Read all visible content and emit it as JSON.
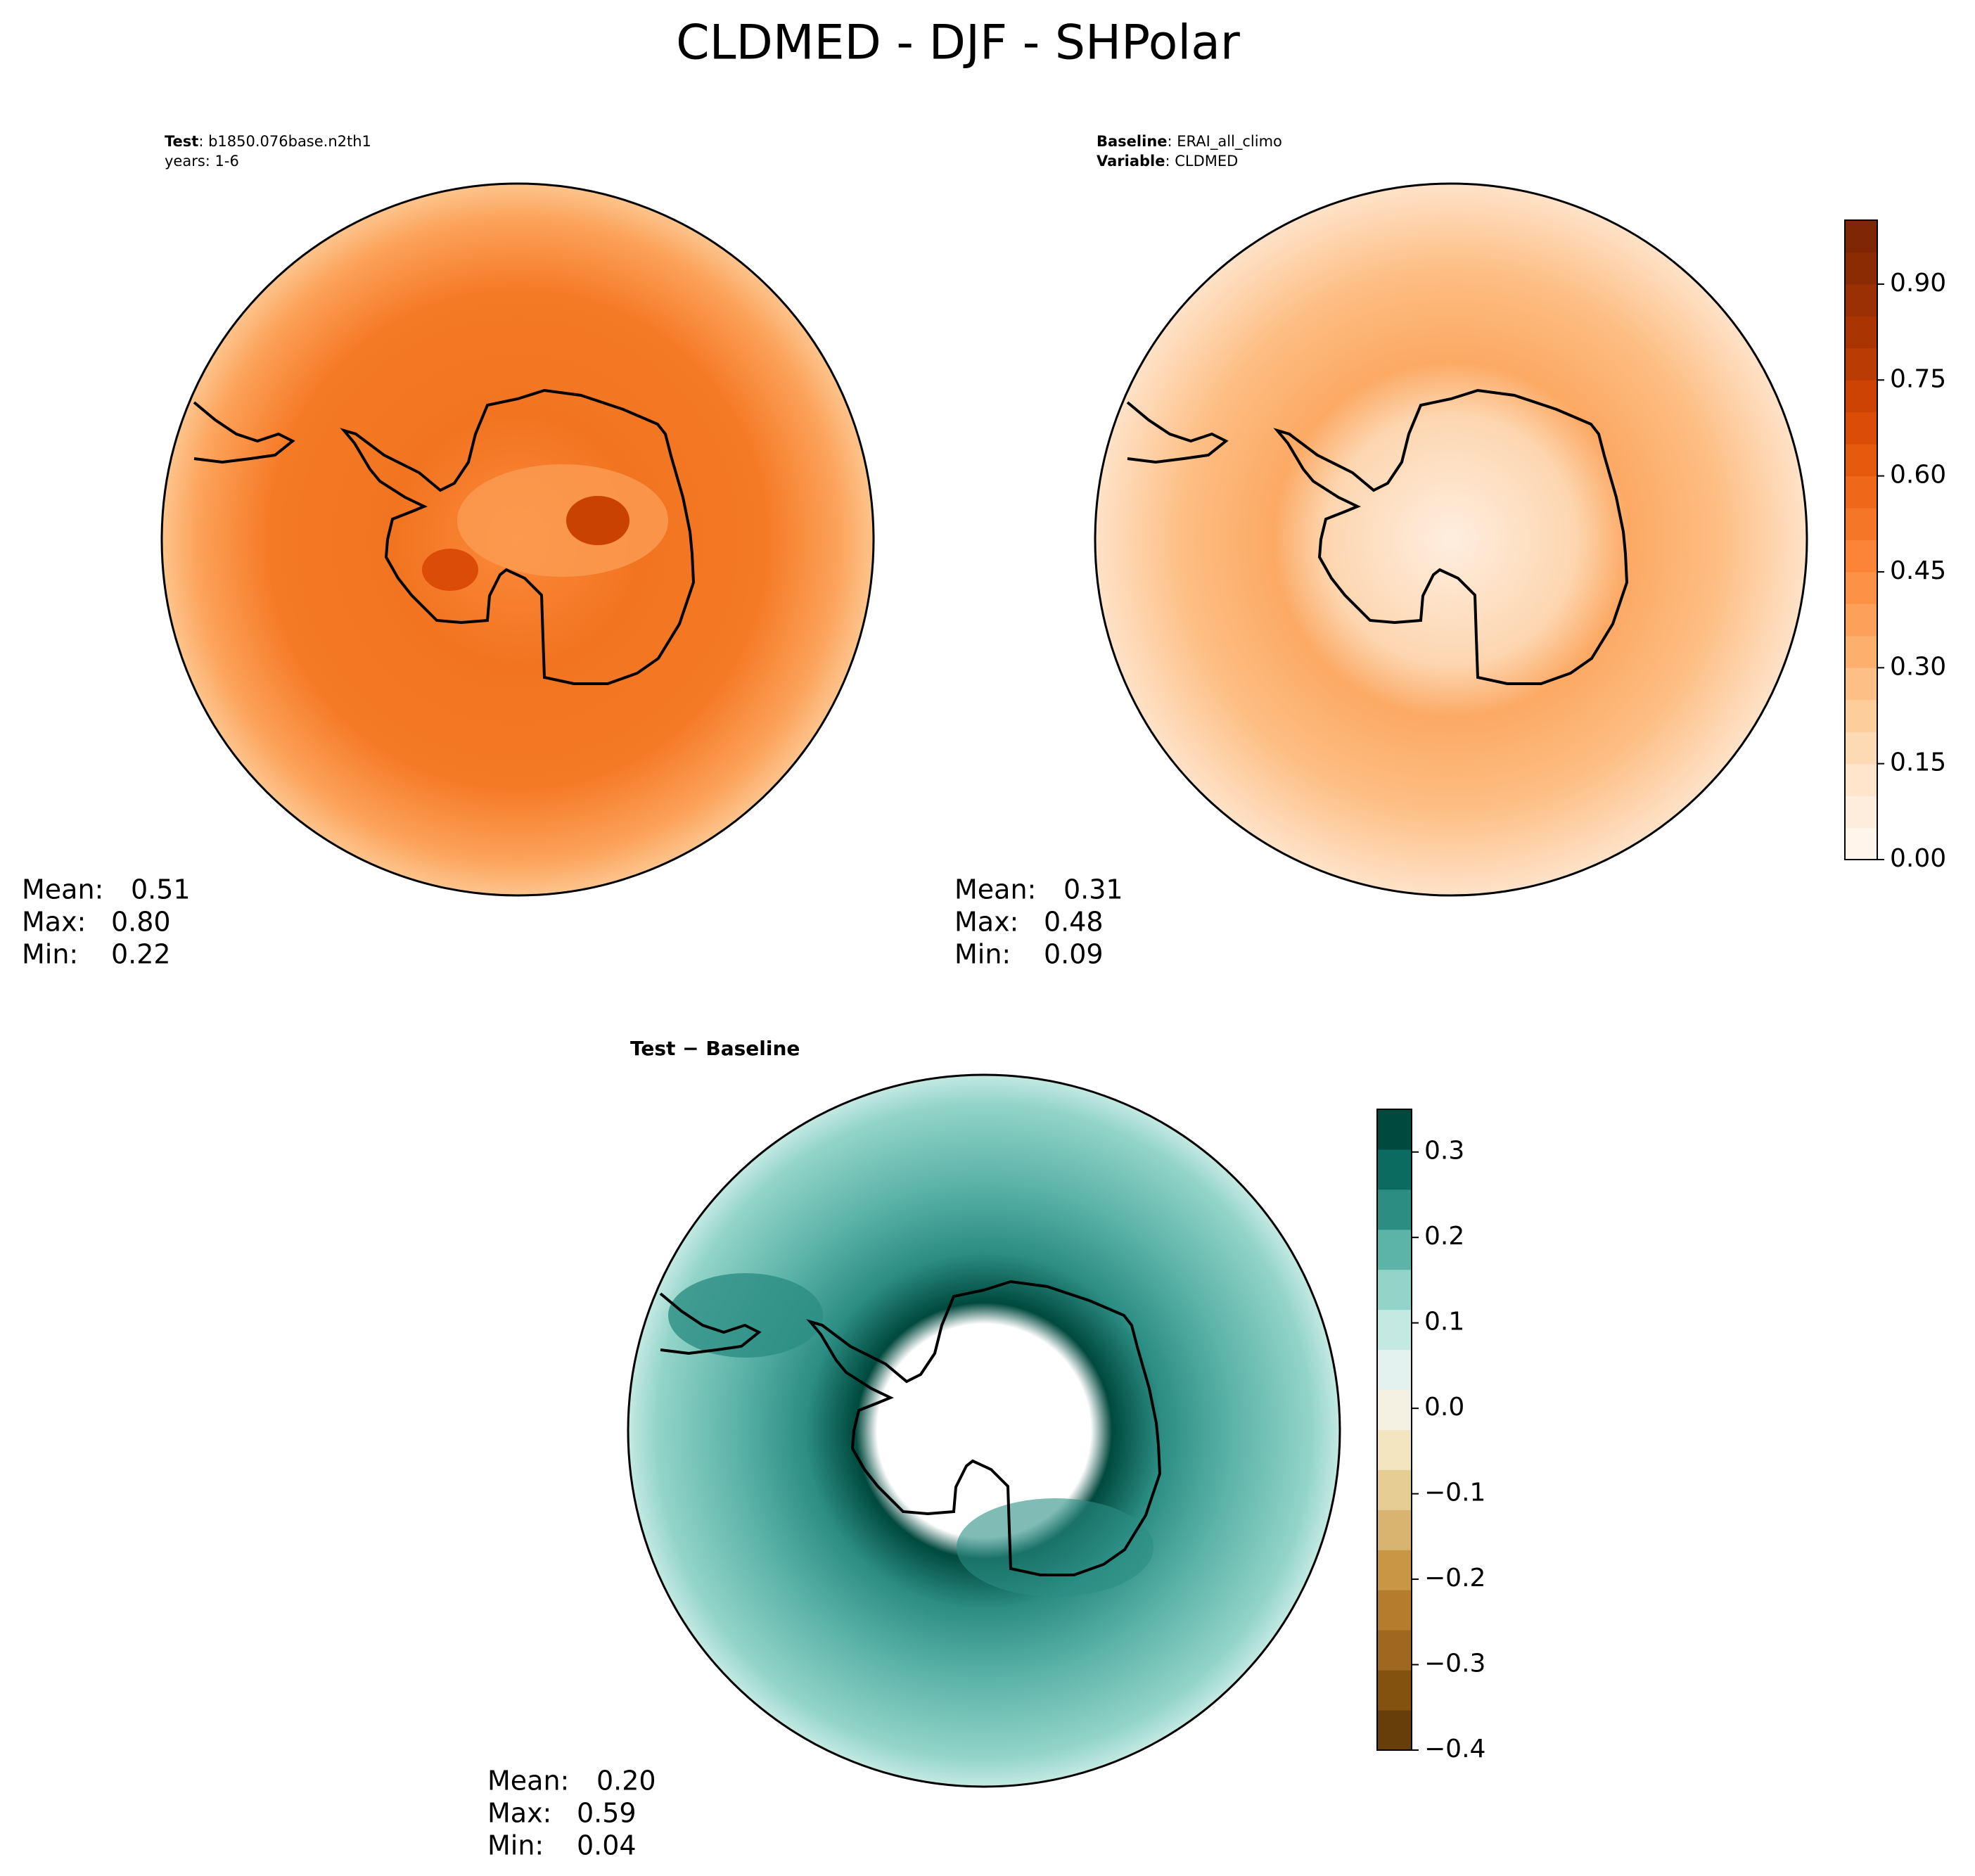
{
  "title": "CLDMED - DJF - SHPolar",
  "panels": [
    {
      "header": [
        {
          "key": "Test",
          "text": ": b1850.076base.n2th1"
        }
      ],
      "note": "years: 1-6",
      "stats": {
        "names": [
          "Mean:",
          "Max:",
          "Min:"
        ],
        "values": [
          0.51,
          0.8,
          0.22
        ],
        "value_labels": [
          "0.51",
          "0.80",
          "0.22"
        ]
      }
    },
    {
      "header": [
        {
          "key": "Baseline",
          "text": ": ERAI_all_climo"
        },
        {
          "key": "Variable",
          "text": ": CLDMED"
        }
      ],
      "stats": {
        "names": [
          "Mean:",
          "Max:",
          "Min:"
        ],
        "values": [
          0.31,
          0.48,
          0.09
        ],
        "value_labels": [
          "0.31",
          "0.48",
          "0.09"
        ]
      }
    },
    {
      "title": "Test − Baseline",
      "stats": {
        "names": [
          "Mean:",
          "Max:",
          "Min:"
        ],
        "values": [
          0.2,
          0.59,
          0.04
        ],
        "value_labels": [
          "0.20",
          "0.59",
          "0.04"
        ]
      }
    }
  ],
  "colorbars": [
    {
      "lim": [
        0,
        1
      ],
      "ticks": [
        {
          "value": 0,
          "label": "0.00"
        },
        {
          "value": 0.15,
          "label": "0.15"
        },
        {
          "value": 0.3,
          "label": "0.30"
        },
        {
          "value": 0.45,
          "label": "0.45"
        },
        {
          "value": 0.6,
          "label": "0.60"
        },
        {
          "value": 0.75,
          "label": "0.75"
        },
        {
          "value": 0.9,
          "label": "0.90"
        }
      ],
      "colors": [
        "#fff5eb",
        "#feeddc",
        "#fee5cb",
        "#fdd9b4",
        "#fdcd9c",
        "#fdbf85",
        "#fdb06e",
        "#fda15a",
        "#fd9247",
        "#fb8436",
        "#f67627",
        "#ef681a",
        "#e65a0e",
        "#db4d07",
        "#cc4303",
        "#bb3c02",
        "#aa3503",
        "#9a3003",
        "#8b2b04",
        "#7f2704"
      ]
    },
    {
      "lim": [
        -0.4,
        0.35
      ],
      "ticks": [
        {
          "value": -0.4,
          "label": "−0.4"
        },
        {
          "value": -0.3,
          "label": "−0.3"
        },
        {
          "value": -0.2,
          "label": "−0.2"
        },
        {
          "value": -0.1,
          "label": "−0.1"
        },
        {
          "value": 0,
          "label": "0.0"
        },
        0.1,
        0.2,
        0.3
      ],
      "colors": [
        "#673d0a",
        "#83520f",
        "#9f6720",
        "#b57c2e",
        "#c89645",
        "#d8b470",
        "#e6cd94",
        "#f2e5c0",
        "#f4f0e2",
        "#e3f2ef",
        "#c3e9e2",
        "#93d4c9",
        "#5cb3a8",
        "#2c8d83",
        "#0b6b60",
        "#00493e"
      ]
    }
  ]
}
